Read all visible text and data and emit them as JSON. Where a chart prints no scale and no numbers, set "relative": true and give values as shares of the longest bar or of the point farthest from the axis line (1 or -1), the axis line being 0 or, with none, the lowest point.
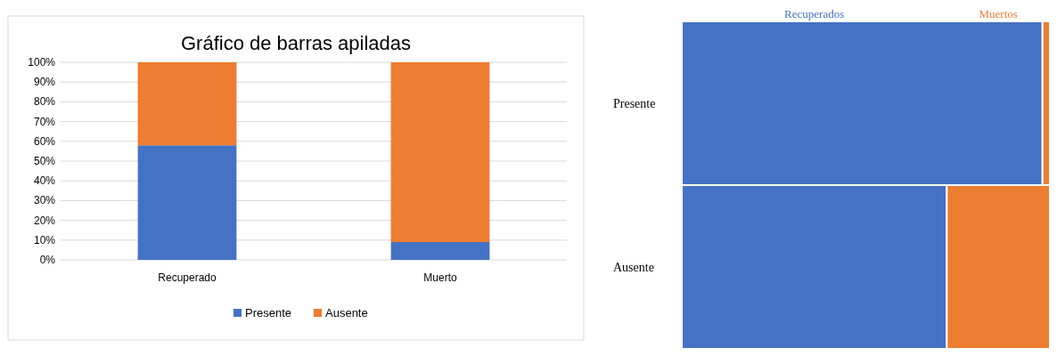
{
  "chart_data": [
    {
      "type": "bar",
      "title": "Gráfico de barras apiladas",
      "categories": [
        "Recuperado",
        "Muerto"
      ],
      "stacked": true,
      "series": [
        {
          "name": "Presente",
          "color": "#4472c4",
          "values": [
            58,
            9
          ]
        },
        {
          "name": "Ausente",
          "color": "#ed7d31",
          "values": [
            42,
            91
          ]
        }
      ],
      "ylim": [
        0,
        100
      ],
      "yticks": [
        {
          "value": 0,
          "label": "0%"
        },
        {
          "value": 10,
          "label": "10%"
        },
        {
          "value": 20,
          "label": "20%"
        },
        {
          "value": 30,
          "label": "30%"
        },
        {
          "value": 40,
          "label": "40%"
        },
        {
          "value": 50,
          "label": "50%"
        },
        {
          "value": 60,
          "label": "60%"
        },
        {
          "value": 70,
          "label": "70%"
        },
        {
          "value": 80,
          "label": "80%"
        },
        {
          "value": 90,
          "label": "90%"
        },
        {
          "value": 100,
          "label": "100%"
        }
      ],
      "grid": "y",
      "legend": "bottom"
    },
    {
      "type": "bar",
      "orientation": "horizontal",
      "stacked": true,
      "relative": true,
      "categories": [
        "Presente",
        "Ausente"
      ],
      "series": [
        {
          "name": "Recuperados",
          "color": "#4472c4",
          "values": [
            0.98,
            0.72
          ]
        },
        {
          "name": "Muertos",
          "color": "#ed7d31",
          "values": [
            0.02,
            0.28
          ]
        }
      ]
    }
  ]
}
